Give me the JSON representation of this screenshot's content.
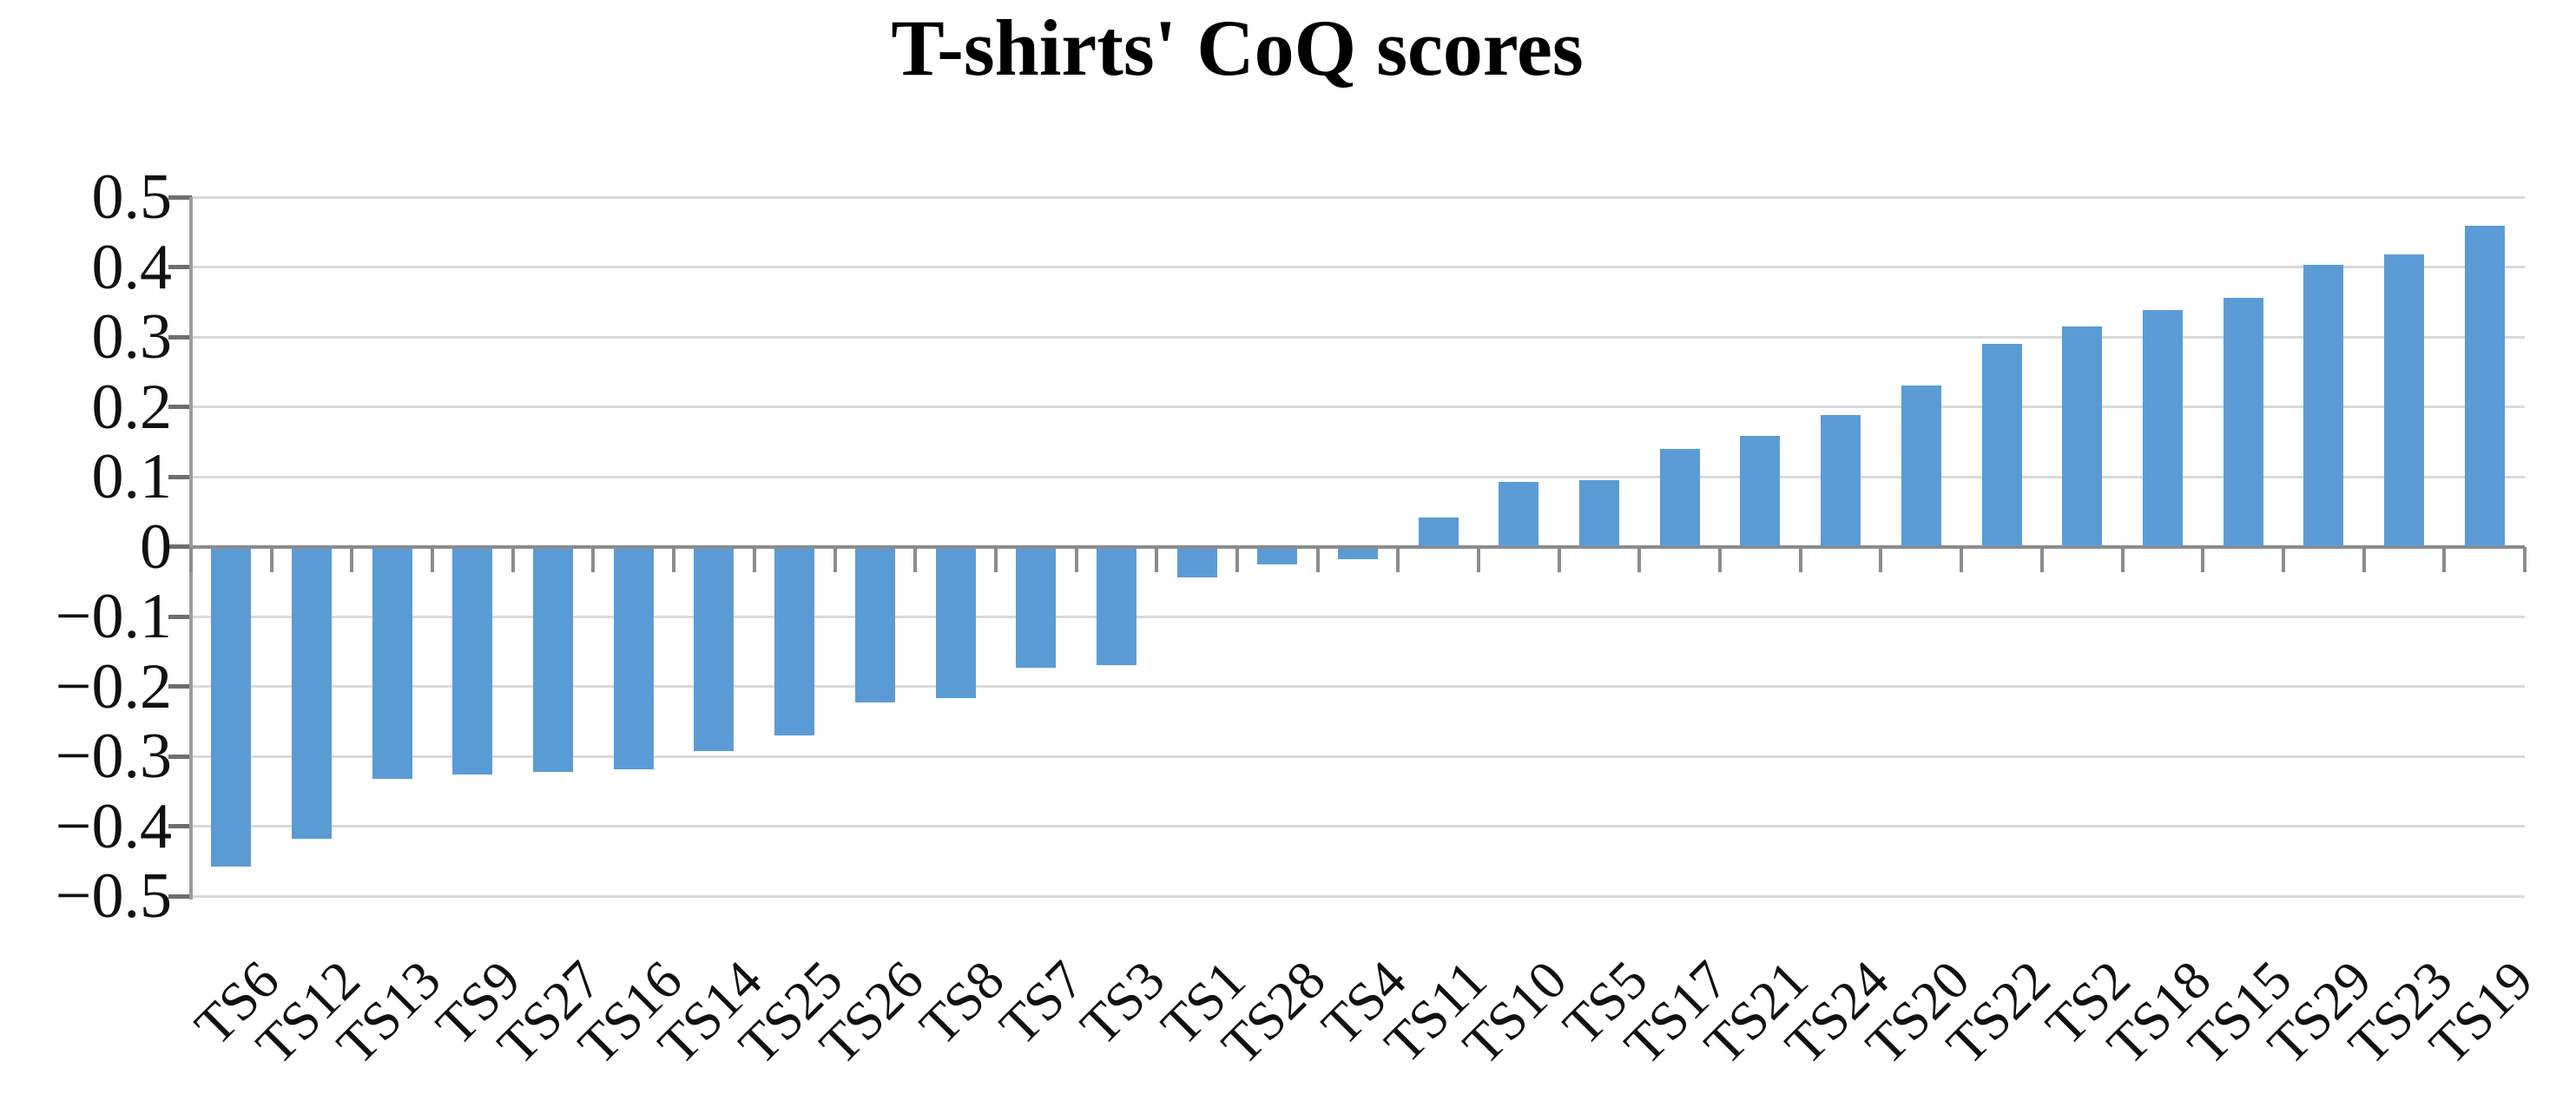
{
  "chart_data": {
    "type": "bar",
    "title": "T-shirts' CoQ scores",
    "categories": [
      "TS6",
      "TS12",
      "TS13",
      "TS9",
      "TS27",
      "TS16",
      "TS14",
      "TS25",
      "TS26",
      "TS8",
      "TS7",
      "TS3",
      "TS1",
      "TS28",
      "TS4",
      "TS11",
      "TS10",
      "TS5",
      "TS17",
      "TS21",
      "TS24",
      "TS20",
      "TS22",
      "TS2",
      "TS18",
      "TS15",
      "TS29",
      "TS23",
      "TS19"
    ],
    "values": [
      -0.455,
      -0.415,
      -0.33,
      -0.324,
      -0.32,
      -0.316,
      -0.29,
      -0.268,
      -0.221,
      -0.214,
      -0.171,
      -0.167,
      -0.042,
      -0.023,
      -0.015,
      0.042,
      0.093,
      0.095,
      0.14,
      0.159,
      0.188,
      0.231,
      0.29,
      0.315,
      0.339,
      0.356,
      0.403,
      0.418,
      0.459
    ],
    "xlabel": "",
    "ylabel": "",
    "ylim": [
      -0.5,
      0.5
    ],
    "ytick_values": [
      0.5,
      0.4,
      0.3,
      0.2,
      0.1,
      0,
      -0.1,
      -0.2,
      -0.3,
      -0.4,
      -0.5
    ],
    "ytick_labels": [
      "0.5",
      "0.4",
      "0.3",
      "0.2",
      "0.1",
      "0",
      "−0.1",
      "−0.2",
      "−0.3",
      "−0.4",
      "−0.5"
    ],
    "grid": true,
    "legend_position": "none",
    "bar_color": "#5B9BD5",
    "gridline_color": "#D9D9D9",
    "zero_line_color": "#8C8C8C",
    "axis_line_color": "#9C9C9C",
    "tick_color": "#6E6E6E",
    "text_color": "#111111",
    "background_color": "#FFFFFF"
  }
}
